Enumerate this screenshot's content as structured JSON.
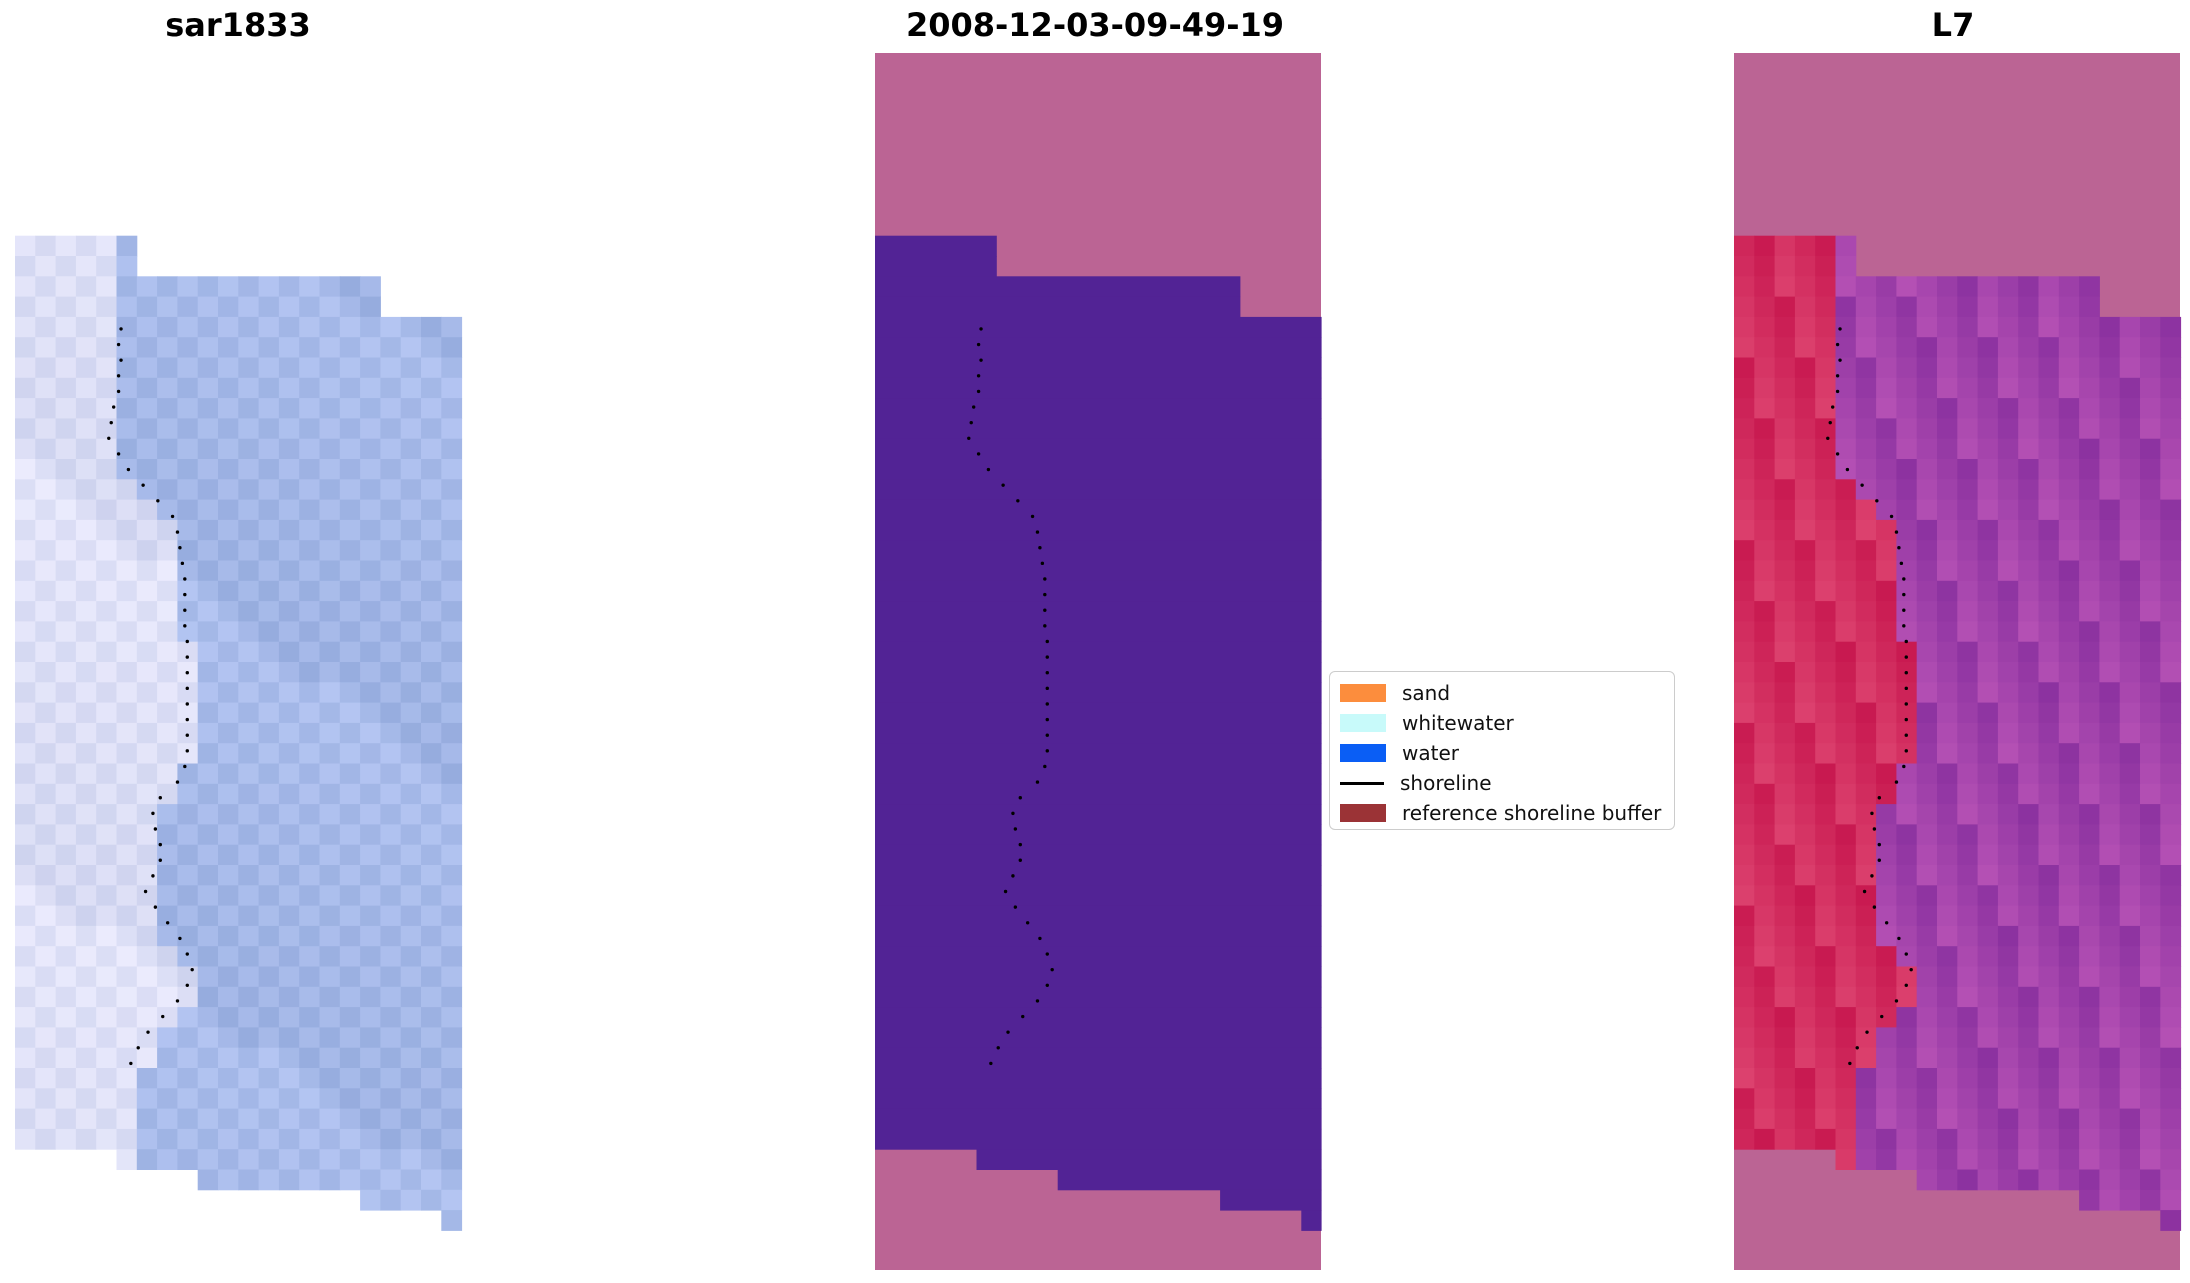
{
  "chart_data": {
    "type": "heatmap",
    "panels": [
      {
        "title": "sar1833",
        "kind": "rgb-image"
      },
      {
        "title": "2008-12-03-09-49-19",
        "kind": "classified-image"
      },
      {
        "title": "L7",
        "kind": "index-image"
      }
    ],
    "legend": {
      "placement": "center",
      "entries": [
        {
          "label": "sand",
          "type": "patch",
          "color": "#fc8d3d"
        },
        {
          "label": "whitewater",
          "type": "patch",
          "color": "#c8fafa"
        },
        {
          "label": "water",
          "type": "patch",
          "color": "#0a5ef5"
        },
        {
          "label": "shoreline",
          "type": "line",
          "color": "#000000"
        },
        {
          "label": "reference shoreline buffer",
          "type": "patch",
          "color": "#9b3336"
        }
      ]
    },
    "colors": {
      "buffer_overlay": "#bb6494",
      "water_class": "#522395",
      "rgb_base": "#a7b7e4"
    },
    "shoreline_profile": [
      [
        0.0,
        0.31
      ],
      [
        0.02,
        0.3
      ],
      [
        0.04,
        0.31
      ],
      [
        0.06,
        0.3
      ],
      [
        0.08,
        0.3
      ],
      [
        0.1,
        0.28
      ],
      [
        0.12,
        0.27
      ],
      [
        0.14,
        0.26
      ],
      [
        0.16,
        0.3
      ],
      [
        0.18,
        0.34
      ],
      [
        0.2,
        0.4
      ],
      [
        0.22,
        0.46
      ],
      [
        0.24,
        0.52
      ],
      [
        0.26,
        0.54
      ],
      [
        0.28,
        0.55
      ],
      [
        0.3,
        0.56
      ],
      [
        0.32,
        0.57
      ],
      [
        0.34,
        0.57
      ],
      [
        0.36,
        0.57
      ],
      [
        0.38,
        0.57
      ],
      [
        0.4,
        0.58
      ],
      [
        0.42,
        0.58
      ],
      [
        0.44,
        0.58
      ],
      [
        0.46,
        0.58
      ],
      [
        0.48,
        0.58
      ],
      [
        0.5,
        0.58
      ],
      [
        0.52,
        0.58
      ],
      [
        0.54,
        0.58
      ],
      [
        0.56,
        0.57
      ],
      [
        0.58,
        0.54
      ],
      [
        0.6,
        0.47
      ],
      [
        0.62,
        0.44
      ],
      [
        0.64,
        0.45
      ],
      [
        0.66,
        0.47
      ],
      [
        0.68,
        0.47
      ],
      [
        0.7,
        0.44
      ],
      [
        0.72,
        0.41
      ],
      [
        0.74,
        0.45
      ],
      [
        0.76,
        0.5
      ],
      [
        0.78,
        0.55
      ],
      [
        0.8,
        0.58
      ],
      [
        0.82,
        0.6
      ],
      [
        0.84,
        0.58
      ],
      [
        0.86,
        0.54
      ],
      [
        0.88,
        0.48
      ],
      [
        0.9,
        0.42
      ],
      [
        0.92,
        0.38
      ],
      [
        0.94,
        0.35
      ]
    ]
  }
}
